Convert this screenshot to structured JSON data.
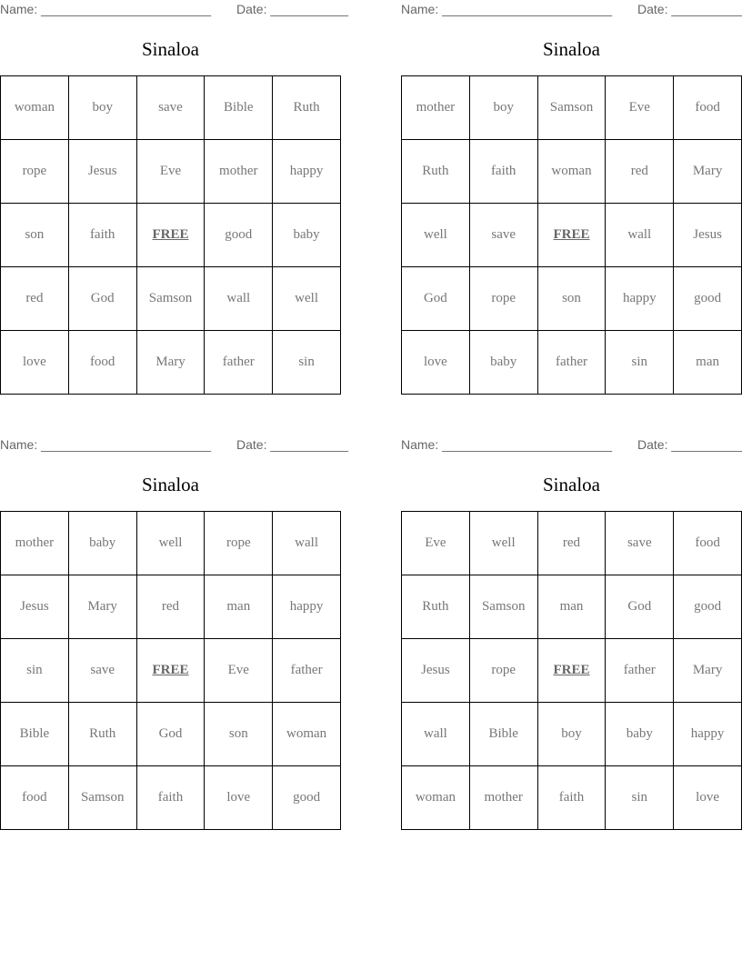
{
  "name_label": "Name: ________________________",
  "date_label": "Date: ___________",
  "free_label": "FREE",
  "cards": [
    {
      "title": "Sinaloa",
      "rows": [
        [
          "woman",
          "boy",
          "save",
          "Bible",
          "Ruth"
        ],
        [
          "rope",
          "Jesus",
          "Eve",
          "mother",
          "happy"
        ],
        [
          "son",
          "faith",
          "FREE",
          "good",
          "baby"
        ],
        [
          "red",
          "God",
          "Samson",
          "wall",
          "well"
        ],
        [
          "love",
          "food",
          "Mary",
          "father",
          "sin"
        ]
      ]
    },
    {
      "title": "Sinaloa",
      "rows": [
        [
          "mother",
          "boy",
          "Samson",
          "Eve",
          "food"
        ],
        [
          "Ruth",
          "faith",
          "woman",
          "red",
          "Mary"
        ],
        [
          "well",
          "save",
          "FREE",
          "wall",
          "Jesus"
        ],
        [
          "God",
          "rope",
          "son",
          "happy",
          "good"
        ],
        [
          "love",
          "baby",
          "father",
          "sin",
          "man"
        ]
      ]
    },
    {
      "title": "Sinaloa",
      "rows": [
        [
          "mother",
          "baby",
          "well",
          "rope",
          "wall"
        ],
        [
          "Jesus",
          "Mary",
          "red",
          "man",
          "happy"
        ],
        [
          "sin",
          "save",
          "FREE",
          "Eve",
          "father"
        ],
        [
          "Bible",
          "Ruth",
          "God",
          "son",
          "woman"
        ],
        [
          "food",
          "Samson",
          "faith",
          "love",
          "good"
        ]
      ]
    },
    {
      "title": "Sinaloa",
      "rows": [
        [
          "Eve",
          "well",
          "red",
          "save",
          "food"
        ],
        [
          "Ruth",
          "Samson",
          "man",
          "God",
          "good"
        ],
        [
          "Jesus",
          "rope",
          "FREE",
          "father",
          "Mary"
        ],
        [
          "wall",
          "Bible",
          "boy",
          "baby",
          "happy"
        ],
        [
          "woman",
          "mother",
          "faith",
          "sin",
          "love"
        ]
      ]
    }
  ]
}
